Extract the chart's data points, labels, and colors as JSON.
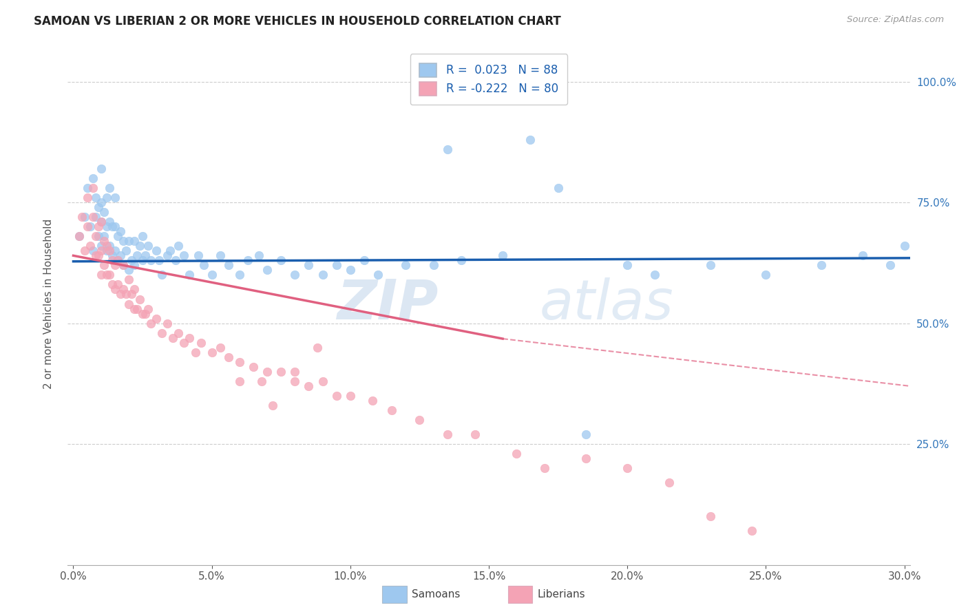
{
  "title": "SAMOAN VS LIBERIAN 2 OR MORE VEHICLES IN HOUSEHOLD CORRELATION CHART",
  "source": "Source: ZipAtlas.com",
  "ylabel": "2 or more Vehicles in Household",
  "ytick_values": [
    0.25,
    0.5,
    0.75,
    1.0
  ],
  "xlim": [
    -0.002,
    0.302
  ],
  "ylim": [
    0.0,
    1.08
  ],
  "samoan_color": "#9EC8EF",
  "liberian_color": "#F4A3B5",
  "samoan_line_color": "#1A5EAE",
  "liberian_line_color": "#E06080",
  "watermark_zip": "ZIP",
  "watermark_atlas": "atlas",
  "samoans_label": "Samoans",
  "liberians_label": "Liberians",
  "samoan_x": [
    0.002,
    0.004,
    0.005,
    0.006,
    0.007,
    0.007,
    0.008,
    0.008,
    0.009,
    0.009,
    0.01,
    0.01,
    0.01,
    0.01,
    0.011,
    0.011,
    0.012,
    0.012,
    0.012,
    0.013,
    0.013,
    0.013,
    0.014,
    0.014,
    0.015,
    0.015,
    0.015,
    0.016,
    0.016,
    0.017,
    0.017,
    0.018,
    0.018,
    0.019,
    0.02,
    0.02,
    0.021,
    0.022,
    0.022,
    0.023,
    0.024,
    0.025,
    0.025,
    0.026,
    0.027,
    0.028,
    0.03,
    0.031,
    0.032,
    0.034,
    0.035,
    0.037,
    0.038,
    0.04,
    0.042,
    0.045,
    0.047,
    0.05,
    0.053,
    0.056,
    0.06,
    0.063,
    0.067,
    0.07,
    0.075,
    0.08,
    0.085,
    0.09,
    0.095,
    0.1,
    0.105,
    0.11,
    0.12,
    0.13,
    0.14,
    0.155,
    0.165,
    0.185,
    0.2,
    0.21,
    0.23,
    0.25,
    0.27,
    0.285,
    0.295,
    0.3,
    0.135,
    0.175
  ],
  "samoan_y": [
    0.68,
    0.72,
    0.78,
    0.7,
    0.65,
    0.8,
    0.72,
    0.76,
    0.68,
    0.74,
    0.66,
    0.71,
    0.75,
    0.82,
    0.68,
    0.73,
    0.65,
    0.7,
    0.76,
    0.66,
    0.71,
    0.78,
    0.64,
    0.7,
    0.65,
    0.7,
    0.76,
    0.63,
    0.68,
    0.64,
    0.69,
    0.62,
    0.67,
    0.65,
    0.61,
    0.67,
    0.63,
    0.62,
    0.67,
    0.64,
    0.66,
    0.63,
    0.68,
    0.64,
    0.66,
    0.63,
    0.65,
    0.63,
    0.6,
    0.64,
    0.65,
    0.63,
    0.66,
    0.64,
    0.6,
    0.64,
    0.62,
    0.6,
    0.64,
    0.62,
    0.6,
    0.63,
    0.64,
    0.61,
    0.63,
    0.6,
    0.62,
    0.6,
    0.62,
    0.61,
    0.63,
    0.6,
    0.62,
    0.62,
    0.63,
    0.64,
    0.88,
    0.27,
    0.62,
    0.6,
    0.62,
    0.6,
    0.62,
    0.64,
    0.62,
    0.66,
    0.86,
    0.78
  ],
  "liberian_x": [
    0.002,
    0.003,
    0.004,
    0.005,
    0.005,
    0.006,
    0.007,
    0.007,
    0.008,
    0.008,
    0.009,
    0.009,
    0.01,
    0.01,
    0.01,
    0.011,
    0.011,
    0.012,
    0.012,
    0.013,
    0.013,
    0.014,
    0.014,
    0.015,
    0.015,
    0.016,
    0.016,
    0.017,
    0.018,
    0.018,
    0.019,
    0.02,
    0.02,
    0.021,
    0.022,
    0.022,
    0.023,
    0.024,
    0.025,
    0.026,
    0.027,
    0.028,
    0.03,
    0.032,
    0.034,
    0.036,
    0.038,
    0.04,
    0.042,
    0.044,
    0.046,
    0.05,
    0.053,
    0.056,
    0.06,
    0.065,
    0.07,
    0.075,
    0.08,
    0.085,
    0.09,
    0.095,
    0.1,
    0.108,
    0.115,
    0.125,
    0.135,
    0.145,
    0.16,
    0.17,
    0.185,
    0.2,
    0.215,
    0.23,
    0.245,
    0.06,
    0.068,
    0.072,
    0.08,
    0.088
  ],
  "liberian_y": [
    0.68,
    0.72,
    0.65,
    0.7,
    0.76,
    0.66,
    0.72,
    0.78,
    0.64,
    0.68,
    0.64,
    0.7,
    0.6,
    0.65,
    0.71,
    0.62,
    0.67,
    0.6,
    0.66,
    0.6,
    0.65,
    0.58,
    0.63,
    0.57,
    0.62,
    0.58,
    0.63,
    0.56,
    0.57,
    0.62,
    0.56,
    0.54,
    0.59,
    0.56,
    0.53,
    0.57,
    0.53,
    0.55,
    0.52,
    0.52,
    0.53,
    0.5,
    0.51,
    0.48,
    0.5,
    0.47,
    0.48,
    0.46,
    0.47,
    0.44,
    0.46,
    0.44,
    0.45,
    0.43,
    0.42,
    0.41,
    0.4,
    0.4,
    0.38,
    0.37,
    0.38,
    0.35,
    0.35,
    0.34,
    0.32,
    0.3,
    0.27,
    0.27,
    0.23,
    0.2,
    0.22,
    0.2,
    0.17,
    0.1,
    0.07,
    0.38,
    0.38,
    0.33,
    0.4,
    0.45
  ],
  "samoan_trend": [
    0.0,
    0.302,
    0.628,
    0.635
  ],
  "liberian_trend_solid": [
    0.0,
    0.155,
    0.64,
    0.468
  ],
  "liberian_trend_dash": [
    0.155,
    0.302,
    0.468,
    0.37
  ],
  "background_color": "#ffffff",
  "grid_color": "#cccccc",
  "title_color": "#222222",
  "axis_right_color": "#3377BB",
  "marker_size": 80,
  "alpha": 0.75,
  "legend_R_samoan": "R =  0.023",
  "legend_N_samoan": "N = 88",
  "legend_R_liberian": "R = -0.222",
  "legend_N_liberian": "N = 80"
}
